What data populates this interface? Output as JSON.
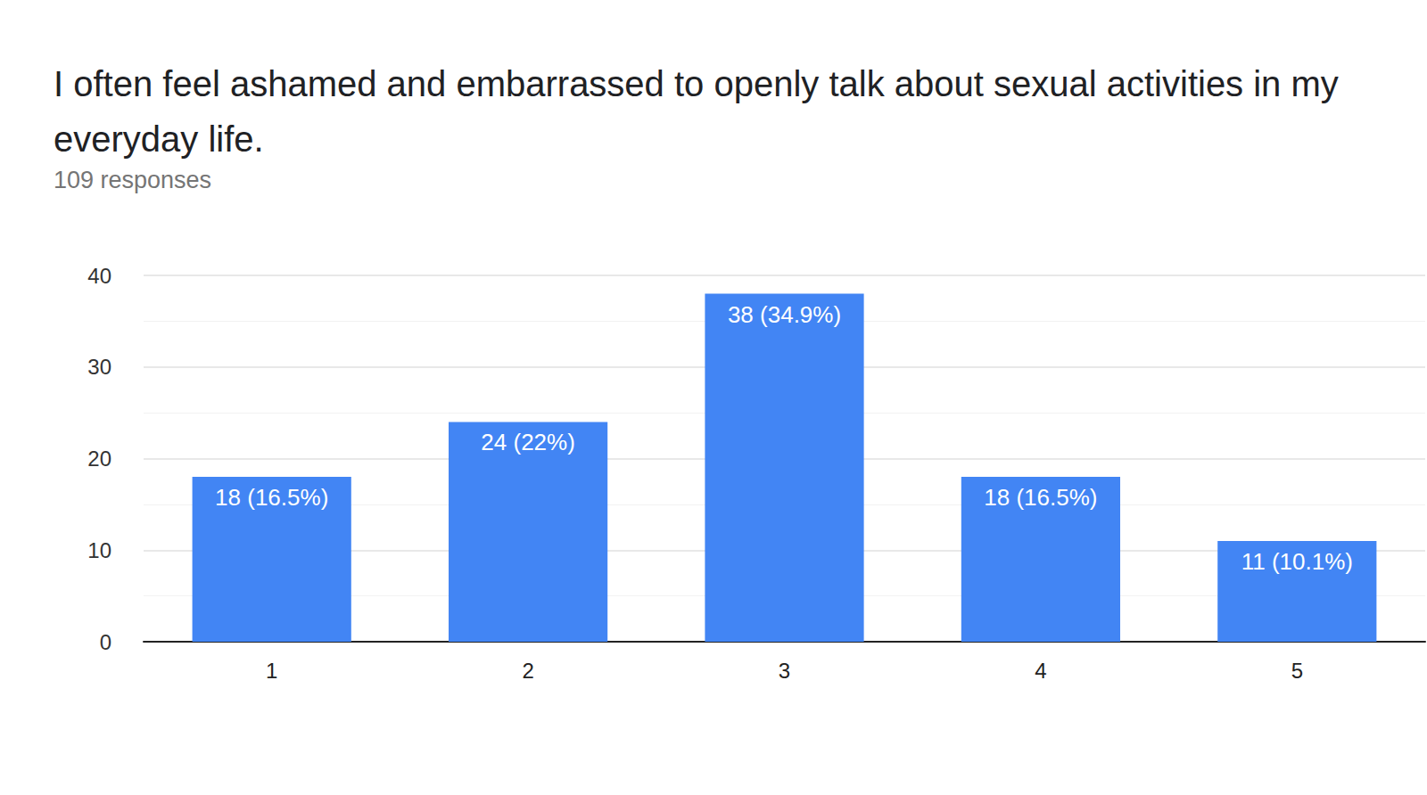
{
  "chart_data": {
    "type": "bar",
    "title": "I often feel ashamed and embarrassed to openly talk about sexual activities in my everyday life.",
    "subtitle": "109 responses",
    "categories": [
      "1",
      "2",
      "3",
      "4",
      "5"
    ],
    "values": [
      18,
      24,
      38,
      18,
      11
    ],
    "value_labels": [
      "18 (16.5%)",
      "24 (22%)",
      "38 (34.9%)",
      "18 (16.5%)",
      "11 (10.1%)"
    ],
    "color": "#4285f4",
    "ylim": [
      0,
      40
    ],
    "yticks": [
      0,
      10,
      20,
      30,
      40
    ],
    "grid": true,
    "data_labels": true
  }
}
